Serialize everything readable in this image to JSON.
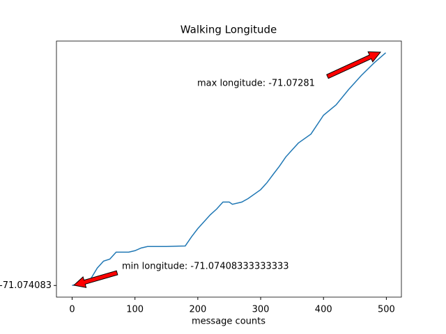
{
  "chart_data": {
    "type": "line",
    "title": "Walking Longitude",
    "x_label": "message counts",
    "x": [
      0,
      20,
      30,
      40,
      50,
      60,
      70,
      80,
      90,
      100,
      110,
      120,
      150,
      180,
      190,
      200,
      210,
      220,
      230,
      240,
      250,
      255,
      270,
      280,
      300,
      310,
      320,
      330,
      340,
      350,
      360,
      380,
      400,
      420,
      440,
      460,
      480,
      499
    ],
    "series": [
      {
        "color": "#1f77b4",
        "values": [
          -71.07408333333333,
          -71.074064,
          -71.074045,
          -71.073988,
          -71.07395,
          -71.073939,
          -71.073901,
          -71.073901,
          -71.073901,
          -71.073893,
          -71.073878,
          -71.07387,
          -71.07387,
          -71.073867,
          -71.073817,
          -71.073772,
          -71.073734,
          -71.073696,
          -71.073665,
          -71.073627,
          -71.073627,
          -71.073639,
          -71.073627,
          -71.073608,
          -71.073559,
          -71.073521,
          -71.073475,
          -71.07343,
          -71.07338,
          -71.073342,
          -71.073304,
          -71.073255,
          -71.073152,
          -71.073095,
          -71.073011,
          -71.072935,
          -71.072867,
          -71.07281
        ]
      }
    ],
    "xlim": [
      -24.95,
      523.95
    ],
    "ylim": [
      -71.074147,
      -71.072746
    ],
    "xticks": [
      0,
      100,
      200,
      300,
      400,
      500
    ],
    "yticks": [
      {
        "value": -71.07408333333333,
        "label": "-71.074083"
      }
    ],
    "annotations": [
      "max longitude: -71.07281",
      "min longitude: -71.07408333333333"
    ],
    "annotation_color": "#ff0000"
  }
}
